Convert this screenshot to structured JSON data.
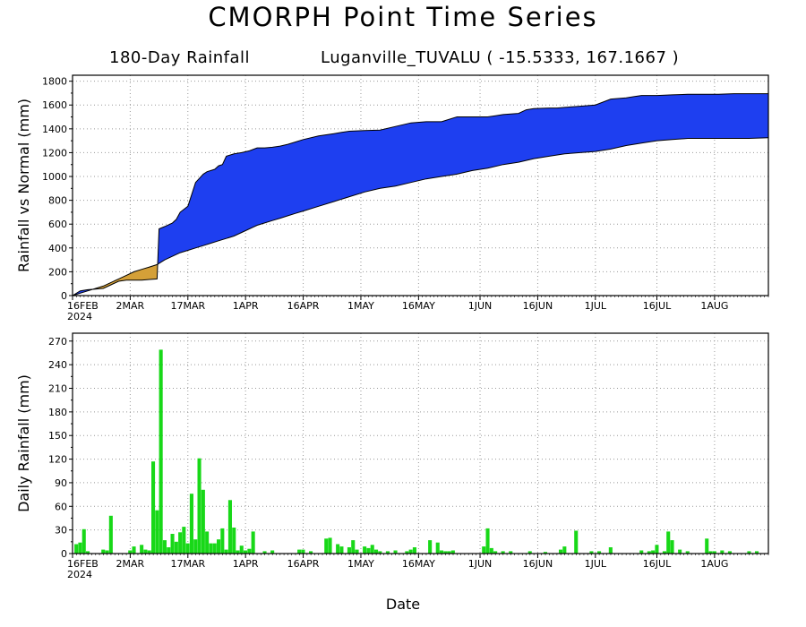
{
  "title": "CMORPH Point Time Series",
  "subtitle_left": "180-Day Rainfall",
  "subtitle_right": "Luganville_TUVALU ( -15.5333, 167.1667 )",
  "xlabel": "Date",
  "colors": {
    "above_normal": "#1e3ff0",
    "below_normal": "#d4a038",
    "daily_bars": "#18d818",
    "grid": "#999999"
  },
  "chart_data": [
    {
      "type": "area",
      "ylabel": "Rainfall vs Normal (mm)",
      "ylim": [
        0,
        1850
      ],
      "yticks": [
        0,
        200,
        400,
        600,
        800,
        1000,
        1200,
        1400,
        1600,
        1800
      ],
      "xlim_days": [
        0,
        181
      ],
      "xtick_days": [
        0,
        15,
        30,
        45,
        60,
        75,
        90,
        106,
        121,
        136,
        152,
        167
      ],
      "xtick_labels": [
        "16FEB",
        "2MAR",
        "17MAR",
        "1APR",
        "16APR",
        "1MAY",
        "16MAY",
        "1JUN",
        "16JUN",
        "1JUL",
        "16JUL",
        "1AUG"
      ],
      "year_label": "2024",
      "grid": true,
      "series": [
        {
          "name": "actual_cumulative",
          "x": [
            0,
            2,
            4,
            6,
            8,
            10,
            12,
            14,
            16,
            18,
            20,
            22,
            22.5,
            24,
            26,
            27,
            28,
            30,
            32,
            34,
            35,
            36,
            37,
            38,
            39,
            40,
            42,
            44,
            46,
            48,
            50,
            52,
            54,
            56,
            58,
            60,
            64,
            68,
            70,
            72,
            76,
            80,
            84,
            88,
            92,
            96,
            100,
            104,
            108,
            110,
            112,
            116,
            118,
            120,
            124,
            126,
            128,
            132,
            136,
            140,
            144,
            146,
            148,
            152,
            156,
            160,
            164,
            168,
            172,
            176,
            181
          ],
          "y": [
            0,
            40,
            50,
            55,
            60,
            90,
            120,
            130,
            130,
            130,
            135,
            140,
            560,
            580,
            610,
            640,
            700,
            750,
            950,
            1020,
            1040,
            1050,
            1060,
            1090,
            1100,
            1170,
            1190,
            1200,
            1215,
            1240,
            1240,
            1245,
            1255,
            1270,
            1290,
            1310,
            1340,
            1360,
            1370,
            1380,
            1385,
            1390,
            1420,
            1450,
            1460,
            1460,
            1500,
            1500,
            1500,
            1510,
            1520,
            1530,
            1560,
            1570,
            1575,
            1575,
            1580,
            1590,
            1600,
            1650,
            1660,
            1670,
            1680,
            1680,
            1685,
            1690,
            1690,
            1690,
            1695,
            1695,
            1695
          ]
        },
        {
          "name": "normal_cumulative",
          "x": [
            0,
            2,
            4,
            6,
            8,
            10,
            12,
            14,
            16,
            18,
            20,
            22,
            24,
            26,
            28,
            30,
            32,
            34,
            36,
            38,
            40,
            42,
            44,
            46,
            48,
            50,
            52,
            54,
            56,
            58,
            60,
            64,
            68,
            72,
            76,
            80,
            84,
            88,
            92,
            96,
            100,
            104,
            108,
            112,
            116,
            120,
            124,
            128,
            132,
            136,
            140,
            144,
            148,
            152,
            156,
            160,
            164,
            168,
            172,
            176,
            181
          ],
          "y": [
            0,
            20,
            40,
            60,
            80,
            110,
            140,
            170,
            200,
            220,
            240,
            260,
            300,
            330,
            360,
            380,
            400,
            420,
            440,
            460,
            480,
            500,
            530,
            560,
            590,
            610,
            630,
            650,
            670,
            690,
            710,
            750,
            790,
            830,
            870,
            900,
            920,
            950,
            980,
            1000,
            1020,
            1050,
            1070,
            1100,
            1120,
            1150,
            1170,
            1190,
            1200,
            1210,
            1230,
            1260,
            1280,
            1300,
            1310,
            1320,
            1320,
            1320,
            1320,
            1320,
            1325
          ]
        }
      ]
    },
    {
      "type": "bar",
      "ylabel": "Daily Rainfall (mm)",
      "ylim": [
        0,
        280
      ],
      "yticks": [
        0,
        30,
        60,
        90,
        120,
        150,
        180,
        210,
        240,
        270
      ],
      "xlim_days": [
        0,
        181
      ],
      "xtick_days": [
        0,
        15,
        30,
        45,
        60,
        75,
        90,
        106,
        121,
        136,
        152,
        167
      ],
      "xtick_labels": [
        "16FEB",
        "2MAR",
        "17MAR",
        "1APR",
        "16APR",
        "1MAY",
        "16MAY",
        "1JUN",
        "16JUN",
        "1JUL",
        "16JUL",
        "1AUG"
      ],
      "year_label": "2024",
      "grid": true,
      "x_days": [
        1,
        2,
        3,
        4,
        8,
        9,
        10,
        15,
        16,
        18,
        19,
        20,
        21,
        22,
        23,
        24,
        25,
        26,
        27,
        28,
        29,
        30,
        31,
        32,
        33,
        34,
        35,
        36,
        37,
        38,
        39,
        40,
        41,
        42,
        43,
        44,
        45,
        46,
        47,
        50,
        52,
        59,
        60,
        62,
        66,
        67,
        69,
        70,
        72,
        73,
        74,
        76,
        77,
        78,
        79,
        80,
        82,
        84,
        87,
        88,
        89,
        93,
        95,
        96,
        97,
        98,
        99,
        107,
        108,
        109,
        110,
        112,
        114,
        119,
        123,
        127,
        128,
        131,
        135,
        137,
        140,
        148,
        150,
        151,
        152,
        154,
        155,
        156,
        158,
        160,
        165,
        166,
        167,
        169,
        171,
        176,
        178
      ],
      "values": [
        12,
        14,
        31,
        3,
        5,
        4,
        48,
        4,
        9,
        11,
        5,
        4,
        117,
        55,
        259,
        17,
        8,
        25,
        15,
        27,
        34,
        13,
        76,
        18,
        121,
        81,
        28,
        13,
        13,
        18,
        32,
        5,
        68,
        33,
        4,
        10,
        4,
        6,
        28,
        3,
        4,
        5,
        5,
        3,
        19,
        20,
        12,
        9,
        8,
        17,
        5,
        9,
        7,
        11,
        5,
        3,
        3,
        4,
        3,
        5,
        8,
        17,
        14,
        4,
        3,
        3,
        4,
        9,
        32,
        7,
        3,
        3,
        3,
        3,
        2,
        5,
        9,
        29,
        3,
        3,
        8,
        4,
        3,
        4,
        11,
        3,
        28,
        17,
        5,
        3,
        19,
        3,
        3,
        4,
        3,
        3,
        3
      ]
    }
  ]
}
